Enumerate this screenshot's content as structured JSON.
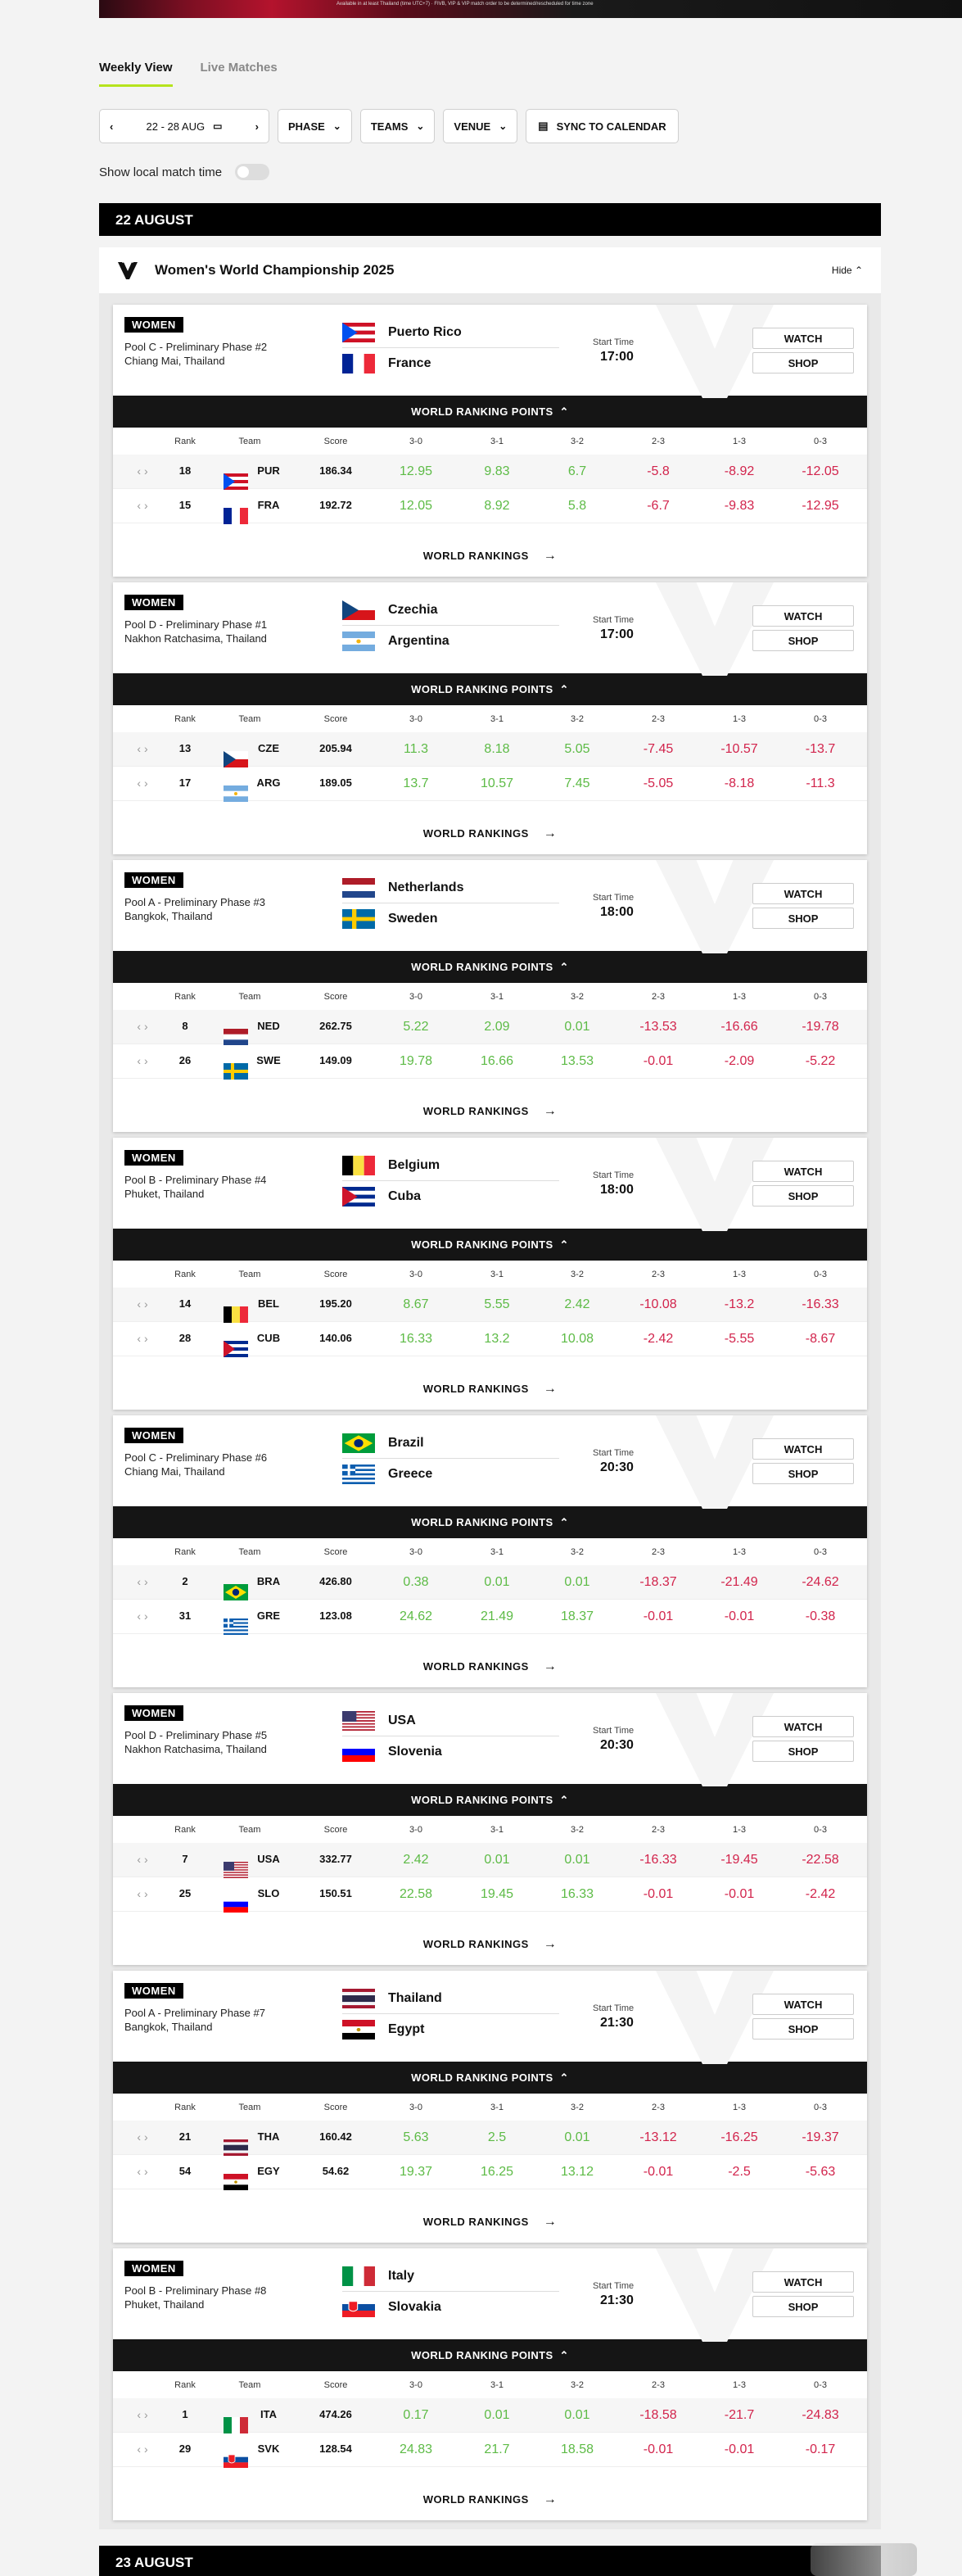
{
  "topbar": {
    "text": "Available in at least Thailand (time UTC+7)   ·   FIVB, VIP & VIP match order to be determined/rescheduled for time zone"
  },
  "tabs": [
    {
      "label": "Weekly View"
    },
    {
      "label": "Live Matches"
    }
  ],
  "filters": {
    "date": "22 - 28 AUG",
    "phase": "PHASE",
    "teams": "TEAMS",
    "venue": "VENUE",
    "sync": "SYNC TO CALENDAR"
  },
  "local_time": {
    "label": "Show local match time",
    "enabled": false
  },
  "day": {
    "label": "22 AUGUST"
  },
  "next_day": {
    "label": "23 AUGUST"
  },
  "competition": {
    "title": "Women's World Championship 2025",
    "hide_label": "Hide"
  },
  "labels": {
    "badge": "WOMEN",
    "start_time": "Start Time",
    "watch": "WATCH",
    "shop": "SHOP",
    "wrp": "WORLD RANKING POINTS",
    "world_rankings": "WORLD RANKINGS",
    "cols": {
      "rank": "Rank",
      "team": "Team",
      "score": "Score",
      "c1": "3-0",
      "c2": "3-1",
      "c3": "3-2",
      "c4": "2-3",
      "c5": "1-3",
      "c6": "0-3"
    }
  },
  "matches": [
    {
      "phase": "Pool C - Preliminary Phase #2",
      "city": "Chiang Mai, Thailand",
      "time": "17:00",
      "teams": [
        {
          "name": "Puerto Rico",
          "flag": "pur",
          "code": "PUR",
          "rank": "18",
          "score": "186.34",
          "pts": [
            "12.95",
            "9.83",
            "6.7",
            "-5.8",
            "-8.92",
            "-12.05"
          ]
        },
        {
          "name": "France",
          "flag": "fra",
          "code": "FRA",
          "rank": "15",
          "score": "192.72",
          "pts": [
            "12.05",
            "8.92",
            "5.8",
            "-6.7",
            "-9.83",
            "-12.95"
          ]
        }
      ]
    },
    {
      "phase": "Pool D - Preliminary Phase #1",
      "city": "Nakhon Ratchasima, Thailand",
      "time": "17:00",
      "teams": [
        {
          "name": "Czechia",
          "flag": "cze",
          "code": "CZE",
          "rank": "13",
          "score": "205.94",
          "pts": [
            "11.3",
            "8.18",
            "5.05",
            "-7.45",
            "-10.57",
            "-13.7"
          ]
        },
        {
          "name": "Argentina",
          "flag": "arg",
          "code": "ARG",
          "rank": "17",
          "score": "189.05",
          "pts": [
            "13.7",
            "10.57",
            "7.45",
            "-5.05",
            "-8.18",
            "-11.3"
          ]
        }
      ]
    },
    {
      "phase": "Pool A - Preliminary Phase #3",
      "city": "Bangkok, Thailand",
      "time": "18:00",
      "teams": [
        {
          "name": "Netherlands",
          "flag": "ned",
          "code": "NED",
          "rank": "8",
          "score": "262.75",
          "pts": [
            "5.22",
            "2.09",
            "0.01",
            "-13.53",
            "-16.66",
            "-19.78"
          ]
        },
        {
          "name": "Sweden",
          "flag": "swe",
          "code": "SWE",
          "rank": "26",
          "score": "149.09",
          "pts": [
            "19.78",
            "16.66",
            "13.53",
            "-0.01",
            "-2.09",
            "-5.22"
          ]
        }
      ]
    },
    {
      "phase": "Pool B - Preliminary Phase #4",
      "city": "Phuket, Thailand",
      "time": "18:00",
      "teams": [
        {
          "name": "Belgium",
          "flag": "bel",
          "code": "BEL",
          "rank": "14",
          "score": "195.20",
          "pts": [
            "8.67",
            "5.55",
            "2.42",
            "-10.08",
            "-13.2",
            "-16.33"
          ]
        },
        {
          "name": "Cuba",
          "flag": "cub",
          "code": "CUB",
          "rank": "28",
          "score": "140.06",
          "pts": [
            "16.33",
            "13.2",
            "10.08",
            "-2.42",
            "-5.55",
            "-8.67"
          ]
        }
      ]
    },
    {
      "phase": "Pool C - Preliminary Phase #6",
      "city": "Chiang Mai, Thailand",
      "time": "20:30",
      "teams": [
        {
          "name": "Brazil",
          "flag": "bra",
          "code": "BRA",
          "rank": "2",
          "score": "426.80",
          "pts": [
            "0.38",
            "0.01",
            "0.01",
            "-18.37",
            "-21.49",
            "-24.62"
          ]
        },
        {
          "name": "Greece",
          "flag": "gre",
          "code": "GRE",
          "rank": "31",
          "score": "123.08",
          "pts": [
            "24.62",
            "21.49",
            "18.37",
            "-0.01",
            "-0.01",
            "-0.38"
          ]
        }
      ]
    },
    {
      "phase": "Pool D - Preliminary Phase #5",
      "city": "Nakhon Ratchasima, Thailand",
      "time": "20:30",
      "teams": [
        {
          "name": "USA",
          "flag": "usa",
          "code": "USA",
          "rank": "7",
          "score": "332.77",
          "pts": [
            "2.42",
            "0.01",
            "0.01",
            "-16.33",
            "-19.45",
            "-22.58"
          ]
        },
        {
          "name": "Slovenia",
          "flag": "slo",
          "code": "SLO",
          "rank": "25",
          "score": "150.51",
          "pts": [
            "22.58",
            "19.45",
            "16.33",
            "-0.01",
            "-0.01",
            "-2.42"
          ]
        }
      ]
    },
    {
      "phase": "Pool A - Preliminary Phase #7",
      "city": "Bangkok, Thailand",
      "time": "21:30",
      "teams": [
        {
          "name": "Thailand",
          "flag": "tha",
          "code": "THA",
          "rank": "21",
          "score": "160.42",
          "pts": [
            "5.63",
            "2.5",
            "0.01",
            "-13.12",
            "-16.25",
            "-19.37"
          ]
        },
        {
          "name": "Egypt",
          "flag": "egy",
          "code": "EGY",
          "rank": "54",
          "score": "54.62",
          "pts": [
            "19.37",
            "16.25",
            "13.12",
            "-0.01",
            "-2.5",
            "-5.63"
          ]
        }
      ]
    },
    {
      "phase": "Pool B - Preliminary Phase #8",
      "city": "Phuket, Thailand",
      "time": "21:30",
      "teams": [
        {
          "name": "Italy",
          "flag": "ita",
          "code": "ITA",
          "rank": "1",
          "score": "474.26",
          "pts": [
            "0.17",
            "0.01",
            "0.01",
            "-18.58",
            "-21.7",
            "-24.83"
          ]
        },
        {
          "name": "Slovakia",
          "flag": "svk",
          "code": "SVK",
          "rank": "29",
          "score": "128.54",
          "pts": [
            "24.83",
            "21.7",
            "18.58",
            "-0.01",
            "-0.01",
            "-0.17"
          ]
        }
      ]
    }
  ]
}
